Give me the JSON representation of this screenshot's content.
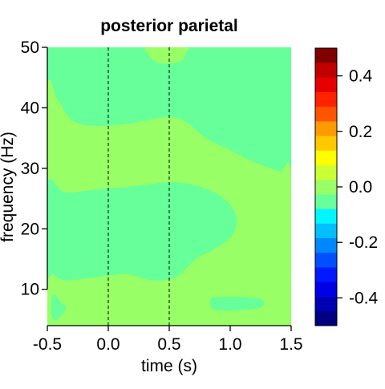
{
  "chart_data": {
    "type": "heatmap",
    "title": "posterior parietal",
    "xlabel": "time (s)",
    "ylabel": "frequency (Hz)",
    "xlim": [
      -0.5,
      1.5
    ],
    "ylim": [
      4,
      50
    ],
    "x_ticks": [
      "-0.5",
      "0.0",
      "0.5",
      "1.0",
      "1.5"
    ],
    "x_tick_values": [
      -0.5,
      0.0,
      0.5,
      1.0,
      1.5
    ],
    "y_ticks": [
      "10",
      "20",
      "30",
      "40",
      "50"
    ],
    "y_tick_values": [
      10,
      20,
      30,
      40,
      50
    ],
    "reference_lines_x": [
      0.0,
      0.5
    ],
    "colorbar": {
      "range": [
        -0.5,
        0.5
      ],
      "tick_labels": [
        "0.4",
        "0.2",
        "0.0",
        "-0.2",
        "-0.4"
      ],
      "tick_values": [
        0.4,
        0.2,
        0.0,
        -0.2,
        -0.4
      ],
      "colors_low_to_high": [
        "#000080",
        "#0000b4",
        "#0000e6",
        "#0019ff",
        "#0050ff",
        "#0087ff",
        "#00bfff",
        "#00f7ff",
        "#66ff99",
        "#99ff66",
        "#ccff33",
        "#ffff00",
        "#ffc800",
        "#ff9900",
        "#ff5500",
        "#ff2200",
        "#e60000",
        "#c00000",
        "#800000"
      ]
    },
    "levels": {
      "background_value": 0.0,
      "background_color": "#66ff99",
      "positive_value": 0.05,
      "positive_color": "#99ff66"
    },
    "regions": [
      {
        "value": 0.05,
        "polygon": [
          [
            -0.5,
            42
          ],
          [
            -0.42,
            41.5
          ],
          [
            -0.3,
            38
          ],
          [
            -0.1,
            37
          ],
          [
            0.2,
            37.5
          ],
          [
            0.5,
            38.5
          ],
          [
            0.65,
            37.5
          ],
          [
            0.8,
            35
          ],
          [
            1.0,
            33
          ],
          [
            1.2,
            31
          ],
          [
            1.4,
            29.5
          ],
          [
            1.5,
            29
          ],
          [
            1.5,
            4
          ],
          [
            -0.5,
            4
          ]
        ]
      },
      {
        "value": 0.0,
        "polygon": [
          [
            -0.5,
            27.5
          ],
          [
            -0.35,
            26
          ],
          [
            -0.1,
            26.5
          ],
          [
            0.2,
            27
          ],
          [
            0.5,
            27.7
          ],
          [
            0.75,
            27
          ],
          [
            0.95,
            25
          ],
          [
            1.05,
            22
          ],
          [
            1.02,
            19
          ],
          [
            0.9,
            17
          ],
          [
            0.72,
            15
          ],
          [
            0.55,
            12
          ],
          [
            0.35,
            11.5
          ],
          [
            0.15,
            12.5
          ],
          [
            -0.1,
            12
          ],
          [
            -0.35,
            11.5
          ],
          [
            -0.45,
            12.5
          ],
          [
            -0.5,
            13
          ]
        ]
      },
      {
        "value": 0.05,
        "polygon": [
          [
            0.32,
            50
          ],
          [
            0.34,
            48.5
          ],
          [
            0.4,
            47.5
          ],
          [
            0.5,
            47.3
          ],
          [
            0.6,
            47.8
          ],
          [
            0.64,
            49.2
          ],
          [
            0.64,
            50
          ]
        ]
      },
      {
        "value": 0.0,
        "polygon": [
          [
            0.84,
            8.4
          ],
          [
            0.9,
            8.7
          ],
          [
            1.1,
            8.7
          ],
          [
            1.26,
            8.3
          ],
          [
            1.25,
            7.0
          ],
          [
            1.05,
            6.5
          ],
          [
            0.88,
            6.6
          ],
          [
            0.84,
            7.3
          ]
        ]
      },
      {
        "value": 0.0,
        "polygon": [
          [
            -0.46,
            8.8
          ],
          [
            -0.43,
            9.0
          ],
          [
            -0.4,
            8.2
          ],
          [
            -0.37,
            7.4
          ],
          [
            -0.34,
            7.0
          ],
          [
            -0.38,
            5.9
          ],
          [
            -0.43,
            4.9
          ],
          [
            -0.46,
            5.5
          ],
          [
            -0.47,
            7.0
          ]
        ]
      }
    ]
  }
}
